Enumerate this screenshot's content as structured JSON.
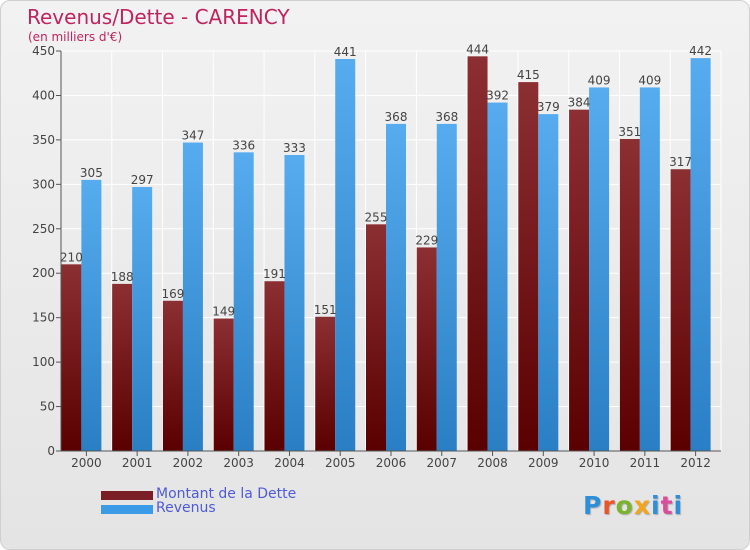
{
  "title": "Revenus/Dette - CARENCY",
  "subtitle": "(en milliers d'€)",
  "logo": "Proxiti",
  "logo_colors": [
    "#2e8fd8",
    "#e8552b",
    "#7bb32e",
    "#f2a51d",
    "#2e8fd8",
    "#d94d9b",
    "#2e8fd8"
  ],
  "chart_data": {
    "type": "bar",
    "categories": [
      "2000",
      "2001",
      "2002",
      "2003",
      "2004",
      "2005",
      "2006",
      "2007",
      "2008",
      "2009",
      "2010",
      "2011",
      "2012"
    ],
    "series": [
      {
        "name": "Montant de la Dette",
        "color": "#7a1f26",
        "values": [
          210,
          188,
          169,
          149,
          191,
          151,
          255,
          229,
          444,
          415,
          384,
          351,
          317
        ]
      },
      {
        "name": "Revenus",
        "color": "#3b9be6",
        "values": [
          305,
          297,
          347,
          336,
          333,
          441,
          368,
          368,
          392,
          379,
          409,
          409,
          442
        ]
      }
    ],
    "ylim": [
      0,
      450
    ],
    "yticks": [
      0,
      50,
      100,
      150,
      200,
      250,
      300,
      350,
      400,
      450
    ],
    "grid": true,
    "legend_position": "bottom-left"
  }
}
